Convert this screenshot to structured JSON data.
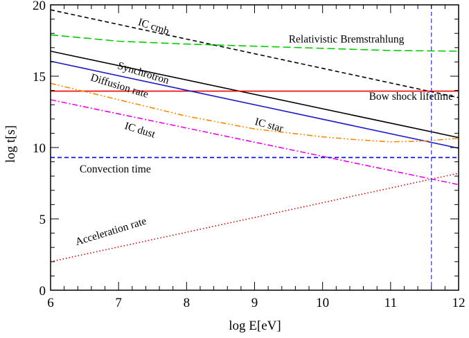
{
  "chart_data": {
    "type": "line",
    "title": "",
    "xlabel": "log E[eV]",
    "ylabel": "log t[s]",
    "xlim": [
      6,
      12
    ],
    "ylim": [
      0,
      20
    ],
    "xticks": [
      6,
      7,
      8,
      9,
      10,
      11,
      12
    ],
    "yticks": [
      0,
      5,
      10,
      15,
      20
    ],
    "grid": false,
    "legend": "none",
    "series": [
      {
        "name": "IC cmb",
        "color": "#000000",
        "dash": "dashed",
        "points": [
          [
            6,
            19.65
          ],
          [
            12,
            13.5
          ]
        ]
      },
      {
        "name": "Relativistic Bremstrahlung",
        "color": "#00cc00",
        "dash": "long-dashed",
        "points": [
          [
            6,
            17.9
          ],
          [
            7,
            17.45
          ],
          [
            8,
            17.25
          ],
          [
            9,
            17.1
          ],
          [
            10,
            16.95
          ],
          [
            11,
            16.8
          ],
          [
            12,
            16.75
          ]
        ]
      },
      {
        "name": "Synchrotron",
        "color": "#000000",
        "dash": "solid",
        "points": [
          [
            6,
            16.75
          ],
          [
            12,
            10.7
          ]
        ]
      },
      {
        "name": "Bow shock lifetime",
        "color": "#ee0000",
        "dash": "solid",
        "points": [
          [
            6,
            13.95
          ],
          [
            12,
            13.95
          ]
        ]
      },
      {
        "name": "Diffusion rate",
        "color": "#1a1acc",
        "dash": "solid",
        "points": [
          [
            6,
            16.05
          ],
          [
            12,
            9.95
          ]
        ]
      },
      {
        "name": "IC star",
        "color": "#ff8800",
        "dash": "dash-dot-dot",
        "points": [
          [
            6,
            14.5
          ],
          [
            7,
            13.35
          ],
          [
            8,
            12.2
          ],
          [
            9,
            11.3
          ],
          [
            10,
            10.75
          ],
          [
            10.5,
            10.55
          ],
          [
            11,
            10.4
          ],
          [
            11.5,
            10.45
          ],
          [
            12,
            10.65
          ]
        ]
      },
      {
        "name": "IC dust",
        "color": "#ee00ee",
        "dash": "dash-dot",
        "points": [
          [
            6,
            13.35
          ],
          [
            12,
            7.4
          ]
        ]
      },
      {
        "name": "Convection time",
        "color": "#0000ee",
        "dash": "dashed",
        "points": [
          [
            6,
            9.3
          ],
          [
            12,
            9.3
          ]
        ]
      },
      {
        "name": "Acceleration rate",
        "color": "#dd0000",
        "dash": "dotted",
        "points": [
          [
            6,
            2.0
          ],
          [
            12,
            8.2
          ]
        ]
      }
    ],
    "vertical_marker": {
      "x": 11.6,
      "color": "#3333dd",
      "dash": "dashed"
    }
  }
}
